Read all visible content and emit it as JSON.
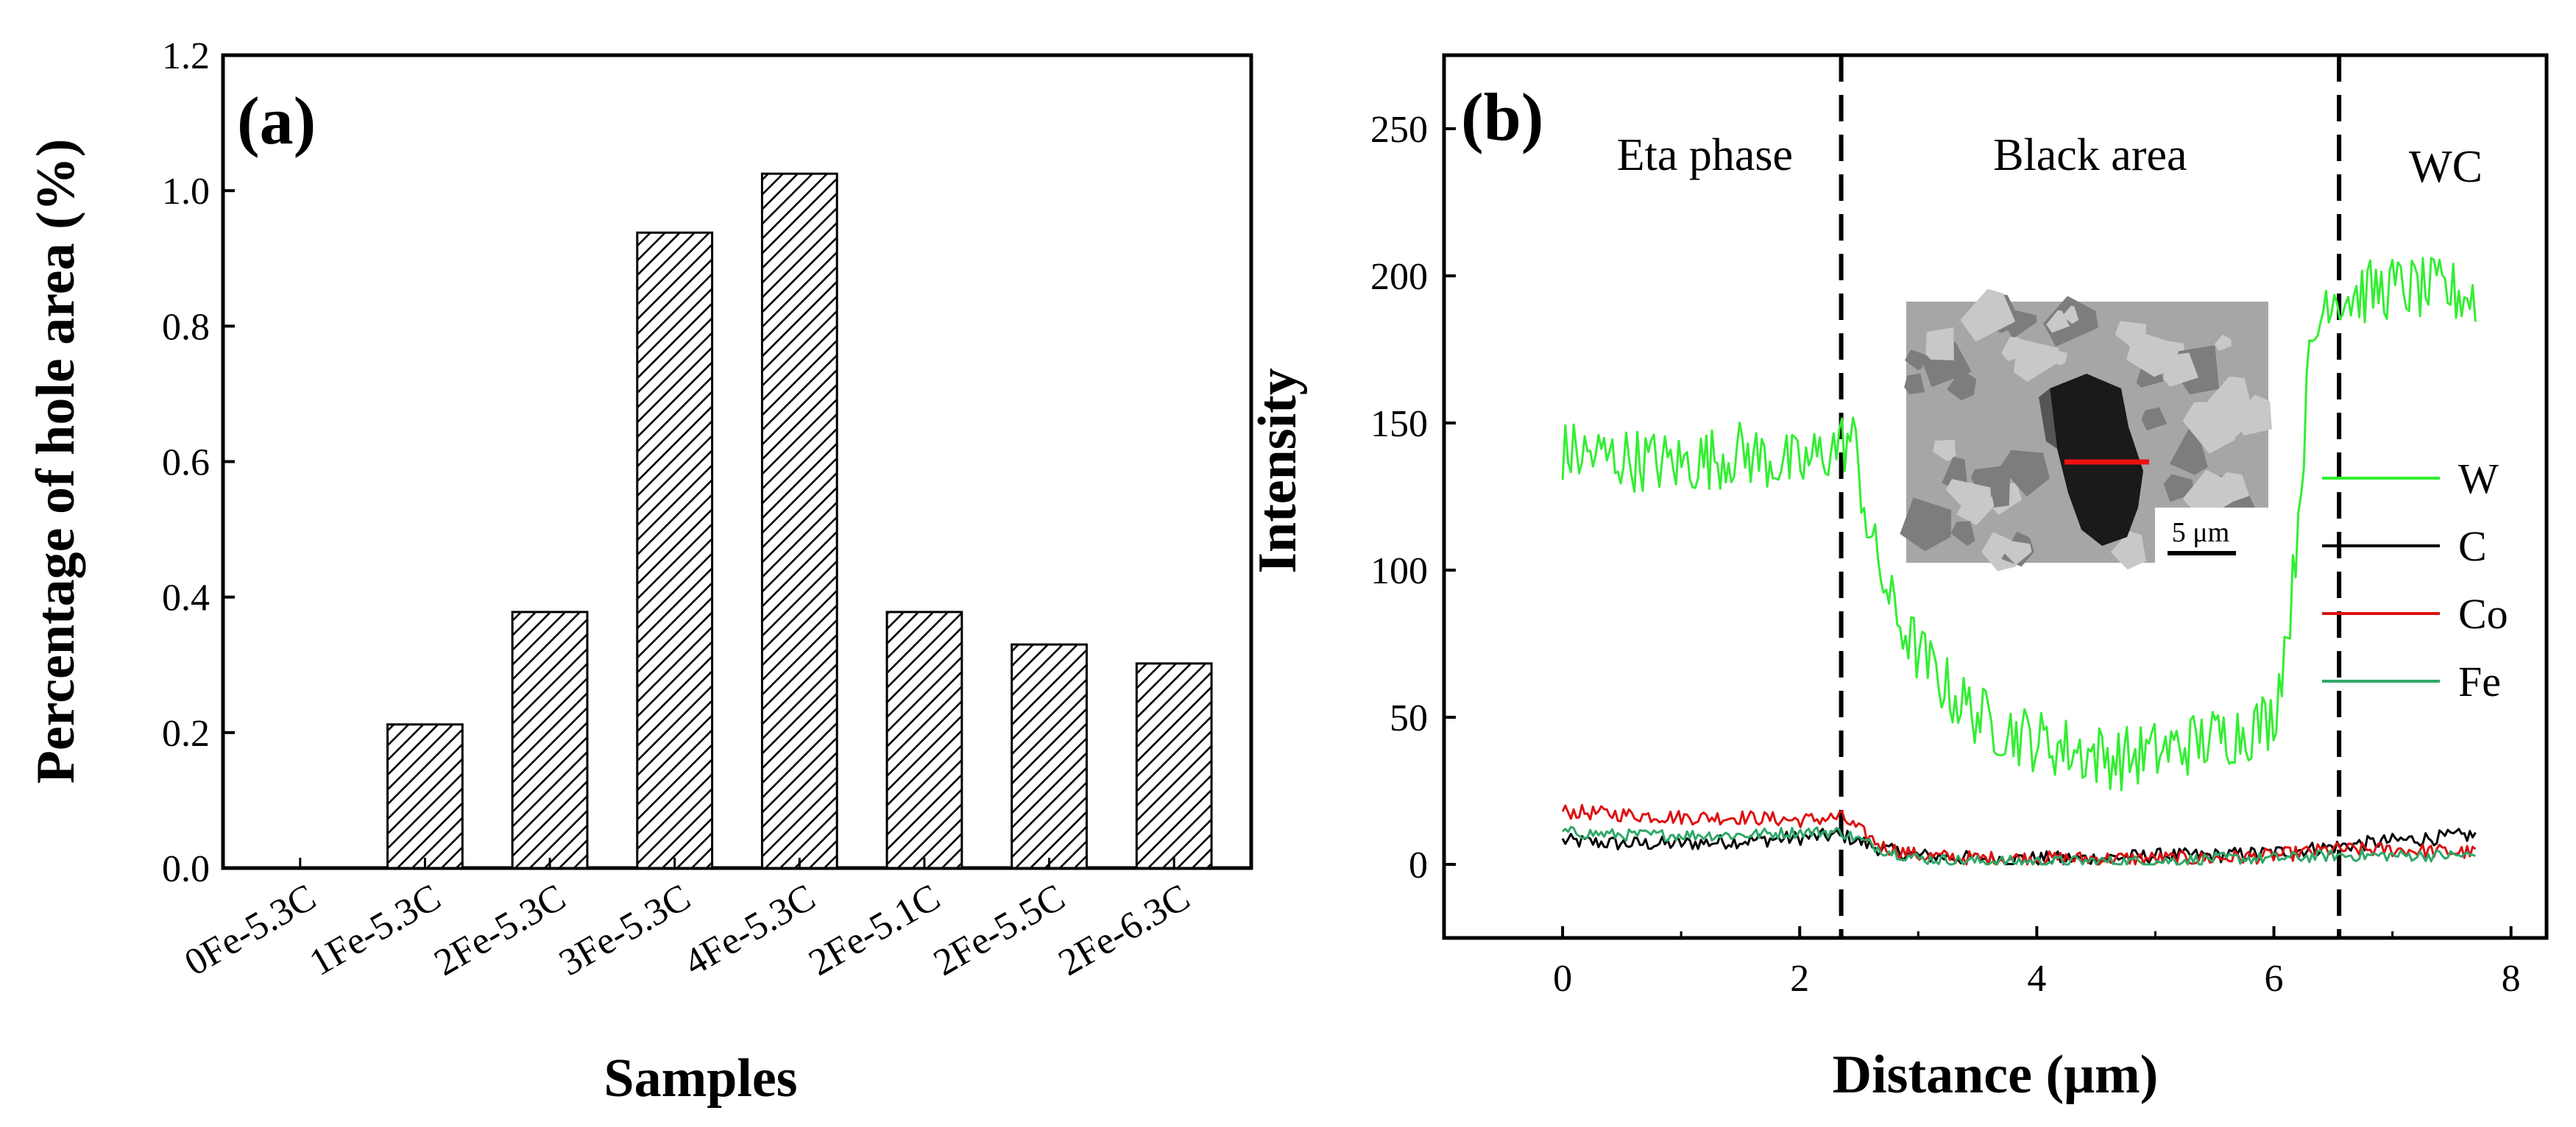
{
  "chart_data": [
    {
      "type": "bar",
      "panel_label": "(a)",
      "title": "",
      "xlabel": "Samples",
      "ylabel": "Percentage of hole area (%)",
      "categories": [
        "0Fe-5.3C",
        "1Fe-5.3C",
        "2Fe-5.3C",
        "3Fe-5.3C",
        "4Fe-5.3C",
        "2Fe-5.1C",
        "2Fe-5.5C",
        "2Fe-6.3C"
      ],
      "values": [
        0.0,
        0.212,
        0.378,
        0.938,
        1.025,
        0.378,
        0.33,
        0.302
      ],
      "ylim": [
        0,
        1.2
      ],
      "yticks": [
        0.0,
        0.2,
        0.4,
        0.6,
        0.8,
        1.0,
        1.2
      ],
      "ytick_labels": [
        "0.0",
        "0.2",
        "0.4",
        "0.6",
        "0.8",
        "1.0",
        "1.2"
      ],
      "fill": "hatched",
      "grid": false
    },
    {
      "type": "line",
      "panel_label": "(b)",
      "title": "",
      "xlabel": "Distance (μm)",
      "ylabel": "Intensity",
      "xlim": [
        -1.0,
        8.3
      ],
      "ylim": [
        -25,
        275
      ],
      "xticks": [
        0,
        2,
        4,
        6,
        8
      ],
      "xtick_labels": [
        "0",
        "2",
        "4",
        "6",
        "8"
      ],
      "yticks": [
        0,
        50,
        100,
        150,
        200,
        250
      ],
      "ytick_labels": [
        "0",
        "50",
        "100",
        "150",
        "200",
        "250"
      ],
      "dividers_x": [
        2.35,
        6.55
      ],
      "region_labels": [
        {
          "text": "Eta phase",
          "x": 1.2,
          "y": 236
        },
        {
          "text": "Black area",
          "x": 4.45,
          "y": 236
        },
        {
          "text": "WC",
          "x": 7.45,
          "y": 232
        }
      ],
      "inset": {
        "description": "SEM micrograph with red line-scan marker",
        "scale_bar_label": "5 μm"
      },
      "legend_position": "right",
      "series": [
        {
          "name": "W",
          "color": "#33ee33",
          "x": [
            0,
            0.5,
            1.0,
            1.5,
            2.0,
            2.3,
            2.45,
            2.6,
            2.8,
            3.0,
            3.3,
            3.6,
            4.0,
            4.4,
            4.7,
            5.0,
            5.4,
            5.8,
            6.0,
            6.15,
            6.3,
            6.45,
            6.6,
            7.0,
            7.4,
            7.7
          ],
          "y": [
            140,
            138,
            136,
            140,
            135,
            142,
            145,
            110,
            85,
            72,
            57,
            48,
            42,
            38,
            36,
            38,
            42,
            46,
            50,
            90,
            170,
            195,
            193,
            196,
            195,
            193
          ]
        },
        {
          "name": "C",
          "color": "#000000",
          "x": [
            0,
            0.5,
            1.0,
            1.5,
            2.0,
            2.35,
            2.7,
            3.0,
            3.5,
            4.0,
            4.5,
            5.0,
            5.5,
            6.0,
            6.5,
            7.0,
            7.7
          ],
          "y": [
            8,
            7,
            7,
            8,
            9,
            10,
            5,
            3,
            2,
            2,
            2,
            3,
            3,
            4,
            6,
            8,
            10
          ]
        },
        {
          "name": "Co",
          "color": "#dd1111",
          "x": [
            0,
            0.5,
            1.0,
            1.5,
            2.0,
            2.35,
            2.7,
            3.0,
            3.5,
            4.0,
            4.5,
            5.0,
            5.5,
            6.0,
            6.5,
            7.0,
            7.7
          ],
          "y": [
            18,
            17,
            16,
            16,
            15,
            16,
            6,
            3,
            2,
            2,
            2,
            2,
            2,
            3,
            5,
            5,
            4
          ]
        },
        {
          "name": "Fe",
          "color": "#2fa86a",
          "x": [
            0,
            0.5,
            1.0,
            1.5,
            2.0,
            2.35,
            2.7,
            3.0,
            3.5,
            4.0,
            4.5,
            5.0,
            5.5,
            6.0,
            6.5,
            7.0,
            7.7
          ],
          "y": [
            11,
            10,
            10,
            10,
            11,
            11,
            5,
            2,
            1,
            1,
            1,
            1,
            2,
            2,
            3,
            3,
            3
          ]
        }
      ]
    }
  ]
}
